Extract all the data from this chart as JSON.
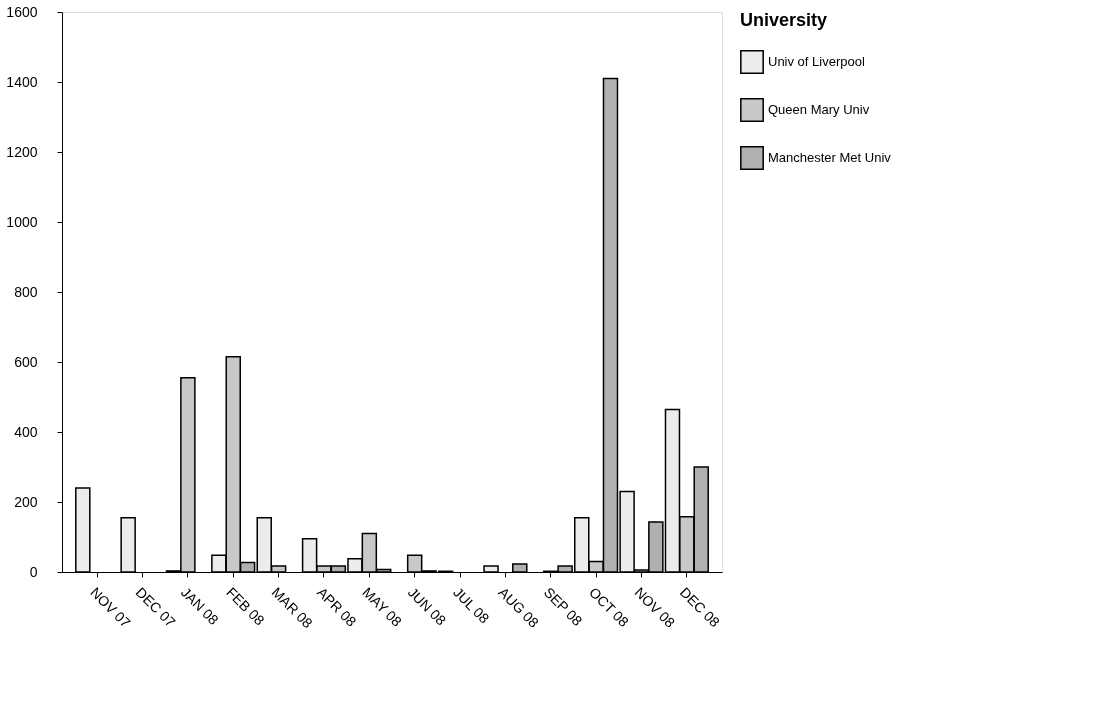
{
  "chart_data": {
    "type": "bar",
    "categories": [
      "NOV 07",
      "DEC 07",
      "JAN 08",
      "FEB 08",
      "MAR 08",
      "APR 08",
      "MAY 08",
      "JUN 08",
      "JUL 08",
      "AUG 08",
      "SEP 08",
      "OCT 08",
      "NOV 08",
      "DEC 08"
    ],
    "series": [
      {
        "name": "Univ of Liverpool",
        "color": "#ececec",
        "values": [
          240,
          155,
          3,
          48,
          155,
          95,
          38,
          0,
          2,
          17,
          0,
          155,
          230,
          464
        ]
      },
      {
        "name": "Queen Mary Univ",
        "color": "#c8c8c8",
        "values": [
          0,
          0,
          555,
          615,
          17,
          17,
          110,
          48,
          0,
          0,
          2,
          30,
          6,
          158
        ]
      },
      {
        "name": "Manchester Met Univ",
        "color": "#b0b0b0",
        "values": [
          0,
          0,
          0,
          27,
          0,
          17,
          7,
          3,
          0,
          23,
          17,
          1410,
          143,
          300
        ]
      }
    ],
    "legend_title": "University",
    "ylim": [
      0,
      1600
    ],
    "yticks": [
      0,
      200,
      400,
      600,
      800,
      1000,
      1200,
      1400,
      1600
    ],
    "grid": false,
    "legend": "right"
  }
}
